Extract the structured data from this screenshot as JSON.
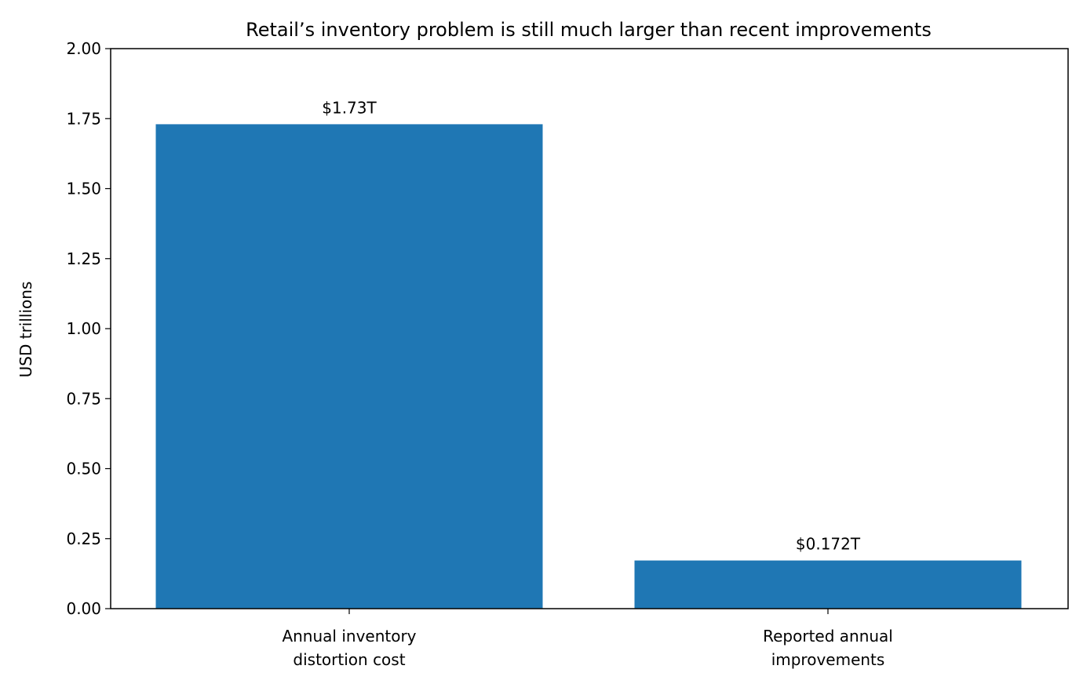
{
  "chart_data": {
    "type": "bar",
    "title": "Retail’s inventory problem is still much larger than recent improvements",
    "xlabel": "",
    "ylabel": "USD trillions",
    "categories": [
      [
        "Annual inventory",
        "distortion cost"
      ],
      [
        "Reported annual",
        "improvements"
      ]
    ],
    "values": [
      1.73,
      0.172
    ],
    "data_labels": [
      "$1.73T",
      "$0.172T"
    ],
    "ylim": [
      0,
      2.0
    ],
    "yticks": [
      0,
      0.25,
      0.5,
      0.75,
      1.0,
      1.25,
      1.5,
      1.75,
      2.0
    ],
    "ytick_labels": [
      "0.00",
      "0.25",
      "0.50",
      "0.75",
      "1.00",
      "1.25",
      "1.50",
      "1.75",
      "2.00"
    ],
    "bar_color": "#1f77b4",
    "grid": false,
    "legend": "none"
  }
}
